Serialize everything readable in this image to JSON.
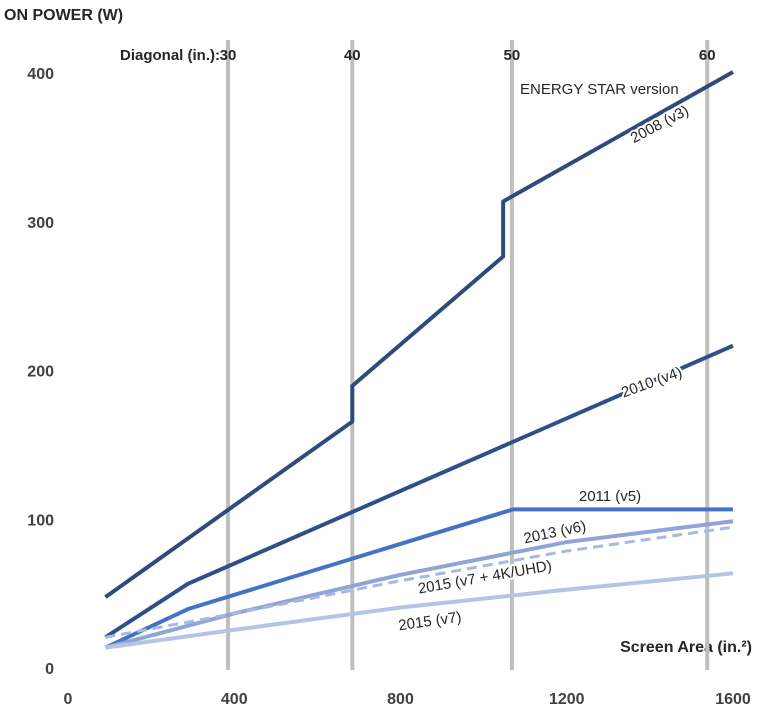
{
  "chart_data": {
    "type": "line",
    "y_axis_title": "ON POWER (W)",
    "x_axis_title": "Screen Area (in.²)",
    "annotation": "ENERGY STAR version",
    "diagonal_title": "Diagonal (in.):",
    "diagonals": [
      {
        "value": 385,
        "label": "30"
      },
      {
        "value": 684,
        "label": "40"
      },
      {
        "value": 1068,
        "label": "50"
      },
      {
        "value": 1538,
        "label": "60"
      }
    ],
    "xlim": [
      0,
      1600
    ],
    "xticks": [
      0,
      400,
      800,
      1200,
      1600
    ],
    "ylim": [
      0,
      400
    ],
    "yticks": [
      0,
      100,
      200,
      300,
      400
    ],
    "series": [
      {
        "name": "2008 (v3)",
        "color": "#2f4b7c",
        "dashed": false,
        "x": [
          90,
          684,
          684,
          1047,
          1047,
          1600
        ],
        "values": [
          49,
          167,
          191,
          278,
          315,
          402
        ]
      },
      {
        "name": "2010 (v4)",
        "color": "#2f4f88",
        "dashed": false,
        "x": [
          90,
          289,
          1600
        ],
        "values": [
          22,
          58,
          218
        ]
      },
      {
        "name": "2011 (v5)",
        "color": "#4472c4",
        "dashed": false,
        "x": [
          90,
          289,
          1071,
          1600
        ],
        "values": [
          15,
          41,
          108,
          108
        ]
      },
      {
        "name": "2013 (v6)",
        "color": "#8fa5d6",
        "dashed": false,
        "x": [
          90,
          400,
          800,
          1200,
          1600
        ],
        "values": [
          15,
          38,
          64,
          86,
          100
        ]
      },
      {
        "name": "2015 (v7 + 4K/UHD)",
        "color": "#a9b8e0",
        "dashed": true,
        "x": [
          90,
          400,
          800,
          1200,
          1600
        ],
        "values": [
          22,
          38,
          60,
          80,
          96
        ]
      },
      {
        "name": "2015 (v7)",
        "color": "#b4c3e6",
        "dashed": false,
        "x": [
          90,
          400,
          800,
          1200,
          1600
        ],
        "values": [
          15,
          27,
          42,
          54,
          65
        ]
      }
    ]
  }
}
